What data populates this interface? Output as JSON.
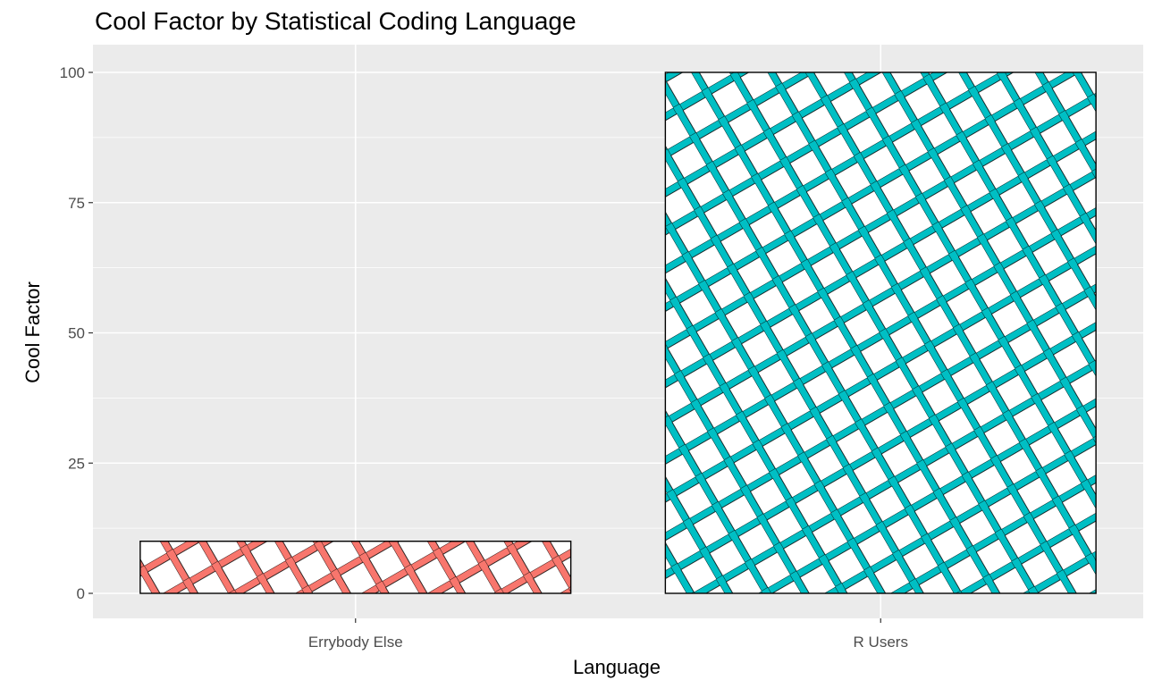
{
  "chart_data": {
    "type": "bar",
    "title": "Cool Factor by Statistical Coding Language",
    "xlabel": "Language",
    "ylabel": "Cool Factor",
    "categories": [
      "Errybody Else",
      "R Users"
    ],
    "values": [
      10,
      100
    ],
    "ylim": [
      0,
      100
    ],
    "yticks": [
      0,
      25,
      50,
      75,
      100
    ],
    "grid": true,
    "legend": "none",
    "pattern": "crosshatch",
    "colors": [
      "#f8766d",
      "#00bfc4"
    ]
  },
  "colors": {
    "panel_background": "#ebebeb",
    "grid_line": "#ffffff",
    "bar_border": "#000000",
    "bar_fill": "#ffffff"
  }
}
